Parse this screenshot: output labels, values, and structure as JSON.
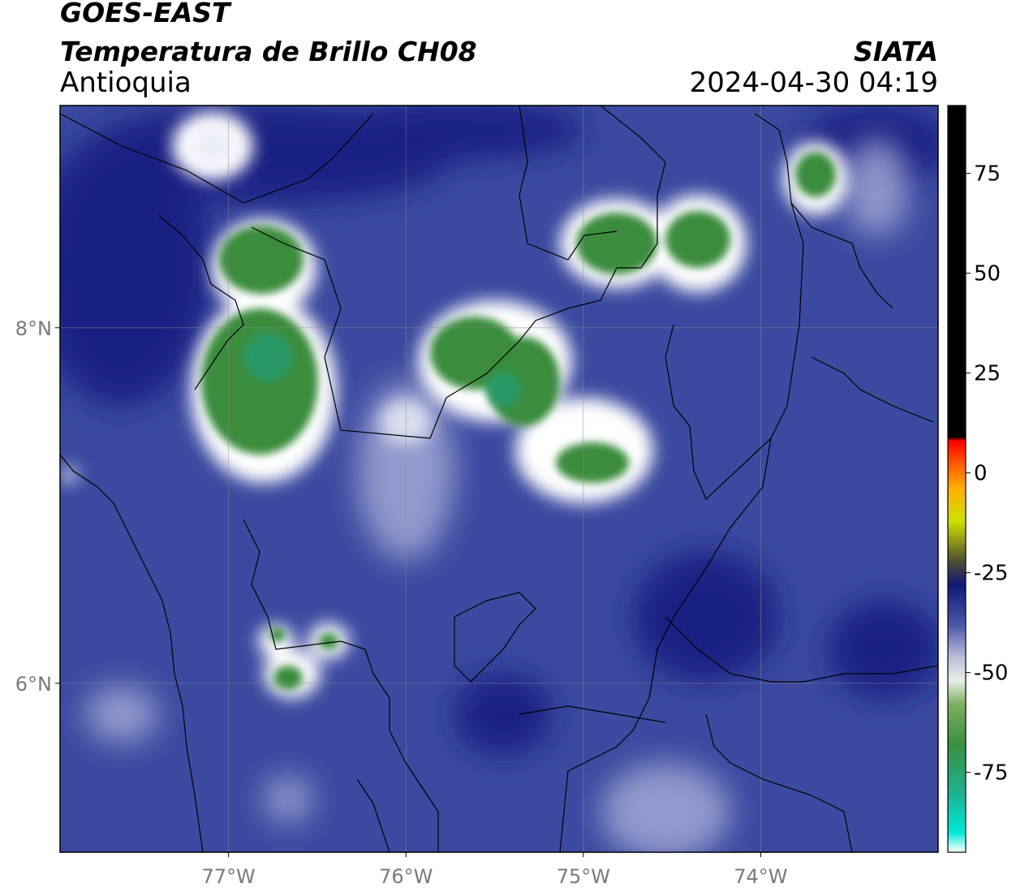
{
  "header": {
    "satellite": "GOES-EAST",
    "product": "Temperatura de Brillo CH08",
    "region": "Antioquia",
    "agency": "SIATA",
    "datetime": "2024-04-30 04:19"
  },
  "map": {
    "lon_ticks": [
      {
        "value": -77,
        "label": "77°W"
      },
      {
        "value": -76,
        "label": "76°W"
      },
      {
        "value": -75,
        "label": "75°W"
      },
      {
        "value": -74,
        "label": "74°W"
      }
    ],
    "lat_ticks": [
      {
        "value": 8,
        "label": "8°N"
      },
      {
        "value": 6,
        "label": "6°N"
      }
    ],
    "lon_range": [
      -77.95,
      -73.0
    ],
    "lat_range": [
      5.05,
      9.25
    ],
    "background_color": "#3b4aa0"
  },
  "colorbar": {
    "range": [
      -95,
      92
    ],
    "ticks": [
      {
        "value": 75,
        "label": "75"
      },
      {
        "value": 50,
        "label": "50"
      },
      {
        "value": 25,
        "label": "25"
      },
      {
        "value": 0,
        "label": "0"
      },
      {
        "value": -25,
        "label": "-25"
      },
      {
        "value": -50,
        "label": "-50"
      },
      {
        "value": -75,
        "label": "-75"
      }
    ],
    "stops": [
      {
        "value": -95,
        "color": "#ffffff"
      },
      {
        "value": -90,
        "color": "#00e8d8"
      },
      {
        "value": -80,
        "color": "#1eb090"
      },
      {
        "value": -68,
        "color": "#3a9040"
      },
      {
        "value": -58,
        "color": "#7ab060"
      },
      {
        "value": -52,
        "color": "#e8eee8"
      },
      {
        "value": -46,
        "color": "#b8bcd8"
      },
      {
        "value": -38,
        "color": "#4a56a8"
      },
      {
        "value": -28,
        "color": "#101878"
      },
      {
        "value": -22,
        "color": "#505030"
      },
      {
        "value": -12,
        "color": "#d0e000"
      },
      {
        "value": -4,
        "color": "#ffb000"
      },
      {
        "value": 3,
        "color": "#ff5000"
      },
      {
        "value": 8,
        "color": "#ff0000"
      },
      {
        "value": 9,
        "color": "#000000"
      },
      {
        "value": 92,
        "color": "#000000"
      }
    ]
  }
}
